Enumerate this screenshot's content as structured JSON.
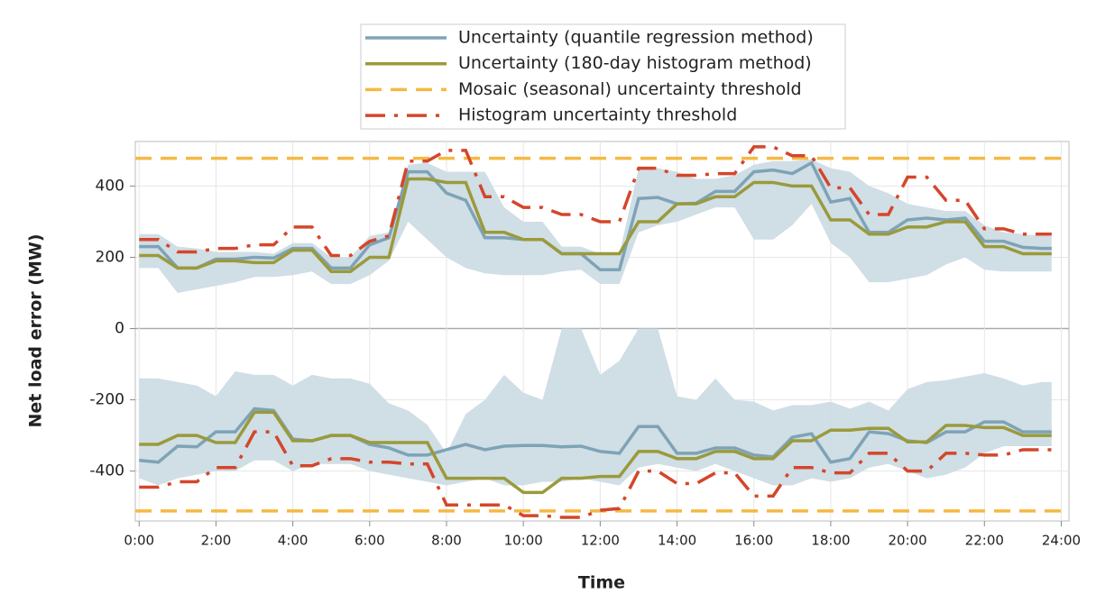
{
  "chart_data": {
    "type": "line",
    "x_label": "Time",
    "y_label": "Net load error (MW)",
    "x": [
      0,
      0.5,
      1,
      1.5,
      2,
      2.5,
      3,
      3.5,
      4,
      4.5,
      5,
      5.5,
      6,
      6.5,
      7,
      7.5,
      8,
      8.5,
      9,
      9.5,
      10,
      10.5,
      11,
      11.5,
      12,
      12.5,
      13,
      13.5,
      14,
      14.5,
      15,
      15.5,
      16,
      16.5,
      17,
      17.5,
      18,
      18.5,
      19,
      19.5,
      20,
      20.5,
      21,
      21.5,
      22,
      22.5,
      23,
      23.5,
      23.75
    ],
    "xlim": [
      -0.1,
      24.2
    ],
    "xticks": [
      {
        "value": 0,
        "label": "0:00"
      },
      {
        "value": 2,
        "label": "2:00"
      },
      {
        "value": 4,
        "label": "4:00"
      },
      {
        "value": 6,
        "label": "6:00"
      },
      {
        "value": 8,
        "label": "8:00"
      },
      {
        "value": 10,
        "label": "10:00"
      },
      {
        "value": 12,
        "label": "12:00"
      },
      {
        "value": 14,
        "label": "14:00"
      },
      {
        "value": 16,
        "label": "16:00"
      },
      {
        "value": 18,
        "label": "18:00"
      },
      {
        "value": 20,
        "label": "20:00"
      },
      {
        "value": 22,
        "label": "22:00"
      },
      {
        "value": 24,
        "label": "24:00"
      }
    ],
    "ylim": [
      -540,
      525
    ],
    "yticks": [
      -400,
      -200,
      0,
      200,
      400
    ],
    "grid": true,
    "series": [
      {
        "name": "Uncertainty (quantile regression method)",
        "color": "#7ea3b7",
        "dash": "solid",
        "band_color": "#cddce4",
        "values_pos": [
          230,
          230,
          170,
          170,
          195,
          195,
          200,
          198,
          225,
          225,
          170,
          170,
          235,
          255,
          440,
          440,
          380,
          360,
          255,
          255,
          250,
          250,
          210,
          210,
          165,
          165,
          365,
          368,
          350,
          352,
          385,
          385,
          440,
          445,
          435,
          465,
          355,
          365,
          270,
          270,
          305,
          310,
          305,
          310,
          245,
          245,
          228,
          225,
          225
        ],
        "values_neg": [
          -370,
          -375,
          -330,
          -332,
          -290,
          -290,
          -225,
          -230,
          -310,
          -315,
          -300,
          -300,
          -325,
          -335,
          -355,
          -355,
          -340,
          -325,
          -340,
          -330,
          -328,
          -328,
          -332,
          -330,
          -345,
          -350,
          -275,
          -275,
          -350,
          -350,
          -335,
          -335,
          -355,
          -360,
          -305,
          -295,
          -375,
          -365,
          -290,
          -295,
          -315,
          -320,
          -290,
          -290,
          -262,
          -262,
          -290,
          -290,
          -290
        ],
        "band_pos_low": [
          170,
          170,
          100,
          110,
          120,
          130,
          145,
          145,
          150,
          160,
          125,
          125,
          150,
          190,
          300,
          250,
          200,
          170,
          155,
          150,
          150,
          150,
          160,
          165,
          125,
          125,
          270,
          290,
          300,
          320,
          340,
          340,
          250,
          250,
          290,
          350,
          240,
          200,
          130,
          130,
          140,
          150,
          180,
          200,
          165,
          160,
          160,
          160,
          160
        ],
        "band_pos_high": [
          265,
          265,
          230,
          225,
          215,
          215,
          215,
          210,
          240,
          240,
          200,
          200,
          260,
          270,
          460,
          465,
          440,
          440,
          440,
          340,
          300,
          300,
          230,
          230,
          210,
          210,
          450,
          450,
          440,
          420,
          420,
          430,
          460,
          470,
          470,
          475,
          450,
          440,
          400,
          380,
          350,
          340,
          330,
          330,
          290,
          270,
          265,
          260,
          260
        ],
        "band_neg_low": [
          -420,
          -440,
          -420,
          -410,
          -400,
          -400,
          -370,
          -370,
          -400,
          -380,
          -380,
          -380,
          -400,
          -410,
          -420,
          -430,
          -440,
          -430,
          -420,
          -440,
          -440,
          -430,
          -430,
          -420,
          -430,
          -440,
          -390,
          -380,
          -390,
          -400,
          -380,
          -400,
          -420,
          -440,
          -440,
          -420,
          -430,
          -420,
          -390,
          -380,
          -400,
          -420,
          -410,
          -390,
          -350,
          -330,
          -330,
          -330,
          -330
        ],
        "band_neg_high": [
          -140,
          -140,
          -150,
          -160,
          -190,
          -120,
          -130,
          -130,
          -160,
          -130,
          -140,
          -140,
          -155,
          -210,
          -230,
          -270,
          -350,
          -240,
          -200,
          -130,
          -180,
          -200,
          0,
          0,
          -130,
          -90,
          0,
          0,
          -190,
          -200,
          -140,
          -200,
          -205,
          -230,
          -215,
          -215,
          -205,
          -225,
          -205,
          -230,
          -170,
          -150,
          -145,
          -135,
          -125,
          -140,
          -160,
          -150,
          -150
        ]
      },
      {
        "name": "Uncertainty (180-day histogram method)",
        "color": "#9a9a3c",
        "dash": "solid",
        "values_pos": [
          205,
          205,
          170,
          170,
          190,
          190,
          185,
          185,
          220,
          220,
          160,
          160,
          200,
          200,
          420,
          420,
          410,
          410,
          270,
          270,
          250,
          250,
          210,
          210,
          210,
          210,
          300,
          300,
          350,
          350,
          370,
          370,
          410,
          410,
          400,
          400,
          305,
          305,
          265,
          265,
          285,
          285,
          300,
          300,
          230,
          230,
          210,
          210,
          210
        ],
        "values_neg": [
          -325,
          -325,
          -300,
          -300,
          -320,
          -320,
          -235,
          -235,
          -315,
          -315,
          -300,
          -300,
          -320,
          -320,
          -320,
          -320,
          -420,
          -420,
          -420,
          -420,
          -460,
          -460,
          -420,
          -420,
          -415,
          -415,
          -345,
          -345,
          -365,
          -365,
          -345,
          -345,
          -365,
          -365,
          -315,
          -315,
          -285,
          -285,
          -280,
          -280,
          -318,
          -318,
          -272,
          -272,
          -278,
          -278,
          -300,
          -300,
          -300
        ]
      },
      {
        "name": "Mosaic (seasonal) uncertainty threshold",
        "color": "#f5b942",
        "dash": "dashed",
        "value_pos": 478,
        "value_neg": -512
      },
      {
        "name": "Histogram uncertainty threshold",
        "color": "#d4462b",
        "dash": "dash-dot",
        "values_pos": [
          250,
          250,
          215,
          215,
          225,
          225,
          235,
          235,
          285,
          285,
          205,
          205,
          245,
          260,
          470,
          470,
          500,
          500,
          370,
          370,
          340,
          340,
          320,
          320,
          300,
          300,
          450,
          450,
          430,
          430,
          435,
          435,
          510,
          510,
          485,
          485,
          395,
          395,
          320,
          320,
          425,
          425,
          360,
          360,
          280,
          280,
          265,
          265,
          265
        ],
        "values_neg": [
          -445,
          -445,
          -430,
          -430,
          -390,
          -390,
          -290,
          -290,
          -385,
          -385,
          -365,
          -365,
          -375,
          -375,
          -380,
          -380,
          -495,
          -495,
          -495,
          -495,
          -525,
          -525,
          -530,
          -530,
          -510,
          -505,
          -400,
          -400,
          -435,
          -435,
          -405,
          -405,
          -470,
          -470,
          -390,
          -390,
          -405,
          -405,
          -350,
          -350,
          -400,
          -400,
          -350,
          -350,
          -355,
          -355,
          -340,
          -340,
          -340
        ]
      }
    ]
  }
}
